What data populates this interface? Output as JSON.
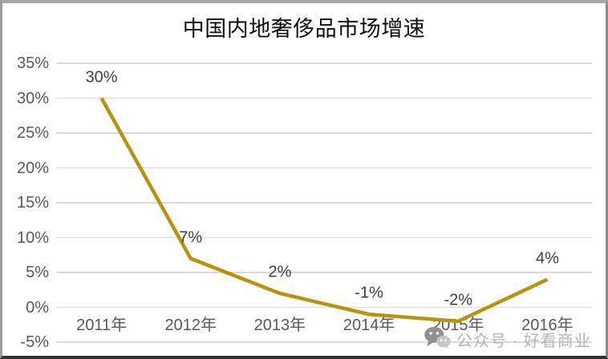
{
  "title": "中国内地奢侈品市场增速",
  "watermark": {
    "icon": "wechat-icon",
    "text": "公众号 · 好看商业"
  },
  "chart_data": {
    "type": "line",
    "title": "中国内地奢侈品市场增速",
    "categories": [
      "2011年",
      "2012年",
      "2013年",
      "2014年",
      "2015年",
      "2016年"
    ],
    "values": [
      30,
      7,
      2,
      -1,
      -2,
      4
    ],
    "data_labels": [
      "30%",
      "7%",
      "2%",
      "-1%",
      "-2%",
      "4%"
    ],
    "y_ticks": [
      {
        "label": "35%",
        "value": 35
      },
      {
        "label": "30%",
        "value": 30
      },
      {
        "label": "25%",
        "value": 25
      },
      {
        "label": "20%",
        "value": 20
      },
      {
        "label": "15%",
        "value": 15
      },
      {
        "label": "10%",
        "value": 10
      },
      {
        "label": "5%",
        "value": 5
      },
      {
        "label": "0%",
        "value": 0
      },
      {
        "label": "-5%",
        "value": -5
      }
    ],
    "ylim": [
      -5,
      35
    ],
    "xlabel": "",
    "ylabel": "",
    "legend": "none",
    "grid": "horizontal",
    "line_color": "#b8930d",
    "grid_color": "#dadada",
    "axis_text_color": "#595959",
    "data_label_color": "#3f3f3f"
  }
}
